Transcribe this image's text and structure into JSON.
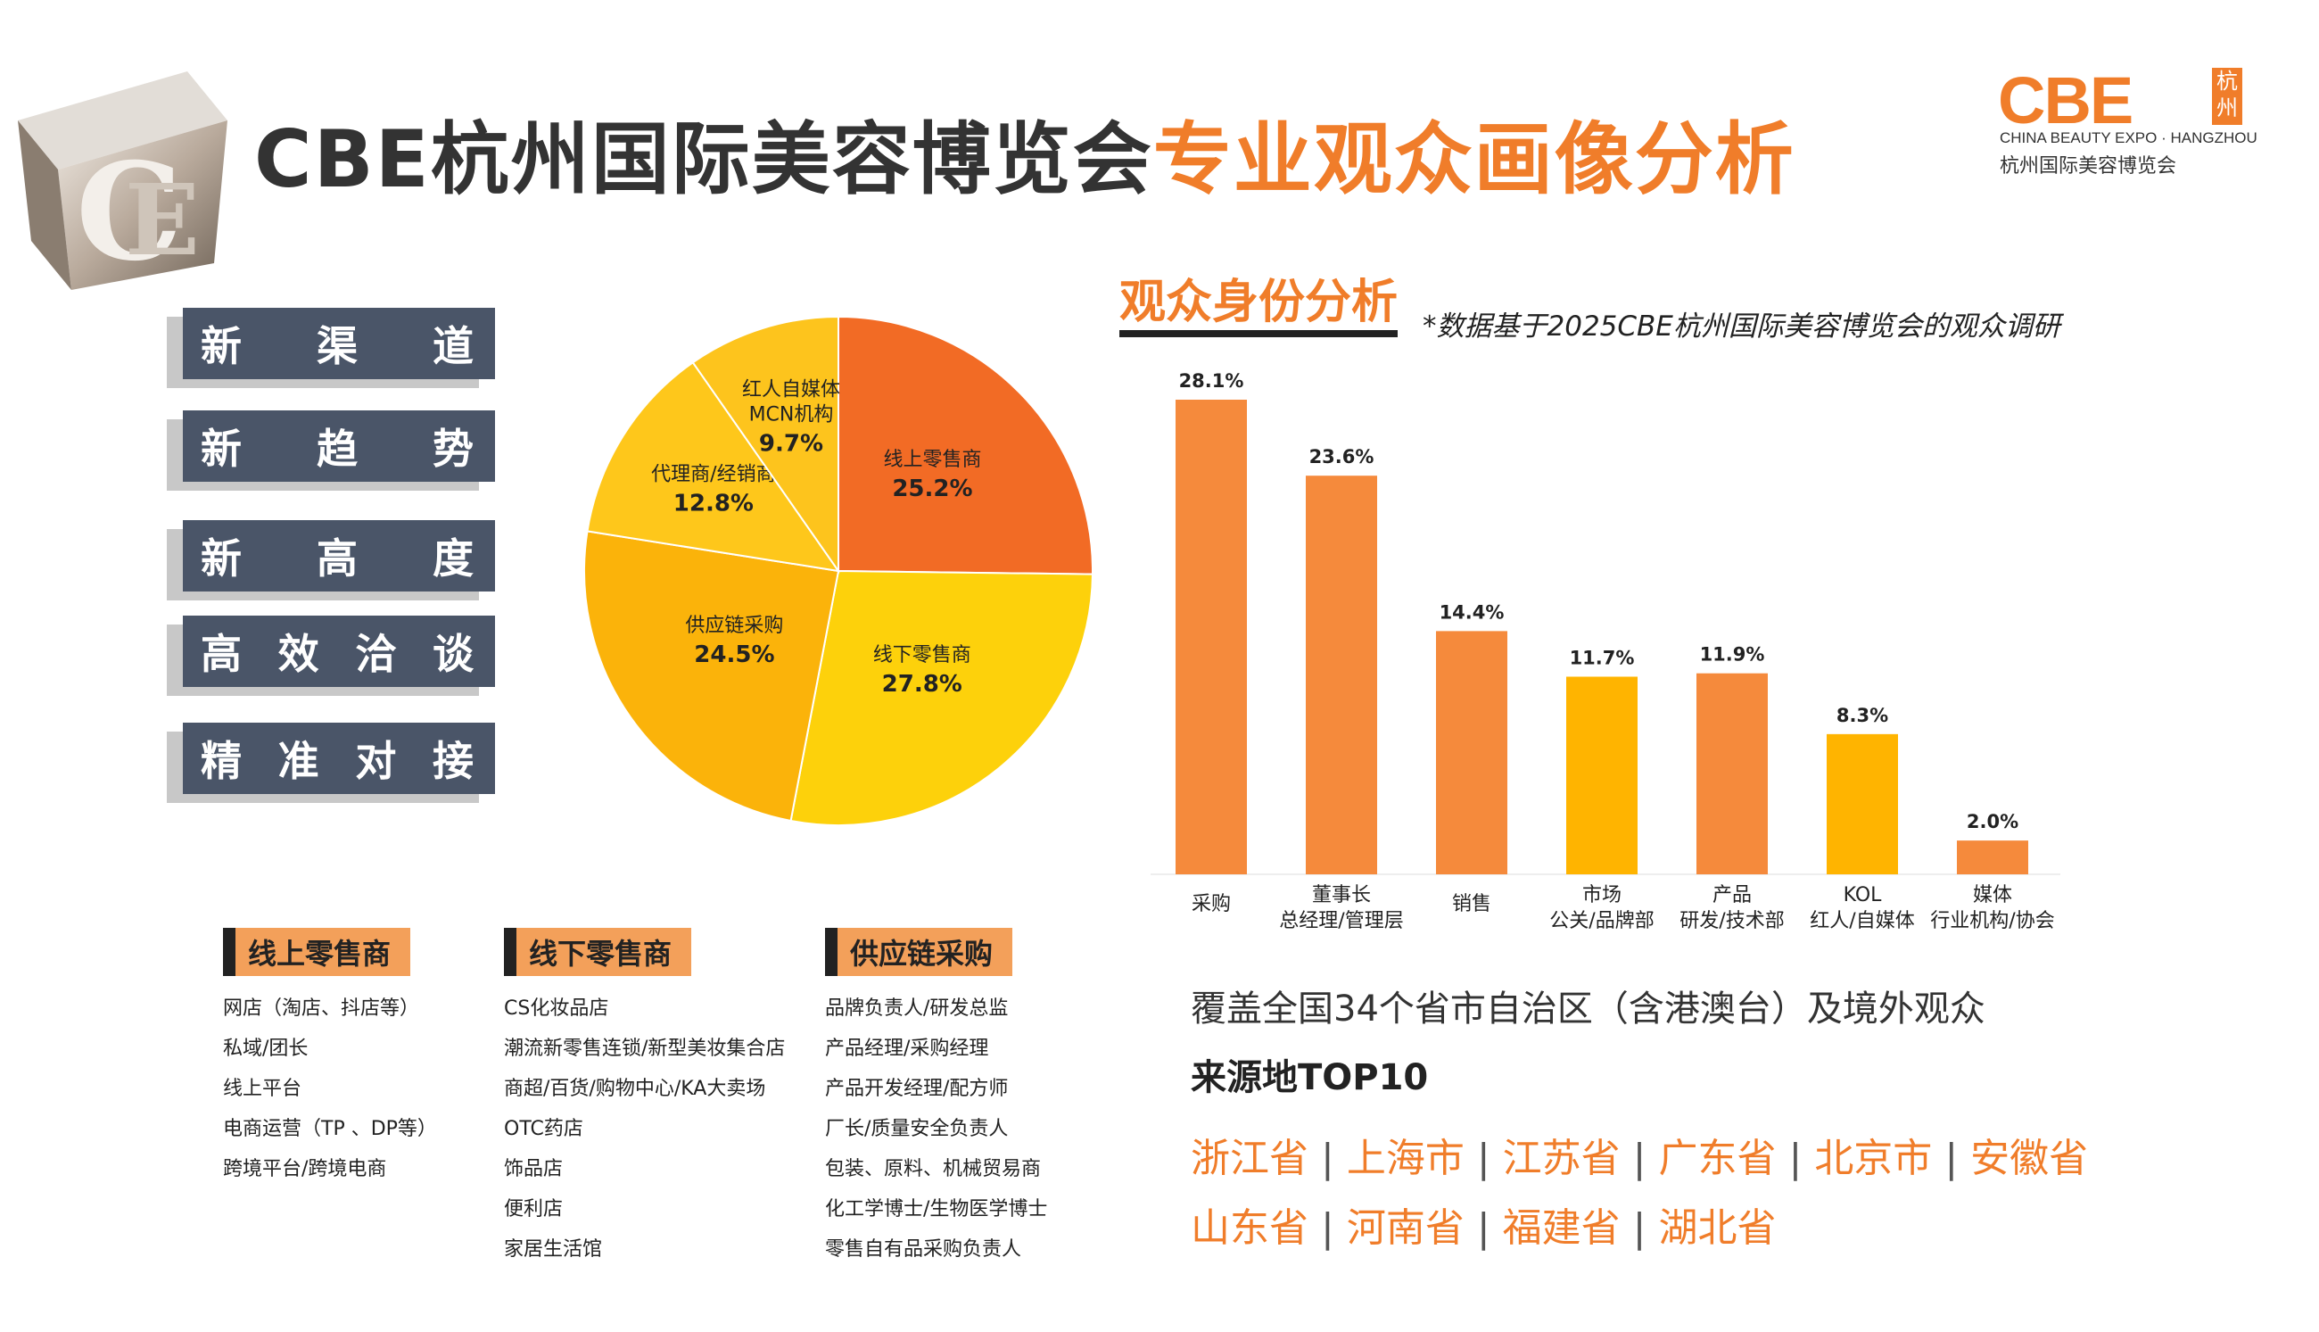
{
  "header": {
    "title_main": "CBE杭州国际美容博览会",
    "title_accent": "专业观众画像分析"
  },
  "logo": {
    "mark": "CBE",
    "hz": "杭州",
    "en": "CHINA BEAUTY EXPO · HANGZHOU",
    "cn": "杭州国际美容博览会"
  },
  "tags": [
    "新渠道",
    "新趋势",
    "新高度",
    "高效洽谈",
    "精准对接"
  ],
  "colors": {
    "accent": "#f07d2a",
    "bar_orange": "#f58a3c",
    "bar_yellow": "#ffb400",
    "tag_bg": "#4a5568",
    "pie": [
      "#f26b25",
      "#fdd10b",
      "#fbb30a",
      "#fec71b",
      "#fdc41d"
    ]
  },
  "chart_data": [
    {
      "type": "pie",
      "slices": [
        {
          "label": "线上零售商",
          "value": 25.2,
          "display": "25.2%"
        },
        {
          "label": "线下零售商",
          "value": 27.8,
          "display": "27.8%"
        },
        {
          "label": "供应链采购",
          "value": 24.5,
          "display": "24.5%"
        },
        {
          "label": "代理商/经销商",
          "value": 12.8,
          "display": "12.8%"
        },
        {
          "label": "红人自媒体\nMCN机构",
          "value": 9.7,
          "display": "9.7%"
        }
      ]
    },
    {
      "type": "bar",
      "title": "观众身份分析",
      "note": "*数据基于2025CBE杭州国际美容博览会的观众调研",
      "ylim": [
        0,
        30
      ],
      "categories": [
        "采购",
        "董事长\n总经理/管理层",
        "销售",
        "市场\n公关/品牌部",
        "产品\n研发/技术部",
        "KOL\n红人/自媒体",
        "媒体\n行业机构/协会"
      ],
      "values": [
        28.1,
        23.6,
        14.4,
        11.7,
        11.9,
        8.3,
        2.0
      ],
      "value_labels": [
        "28.1%",
        "23.6%",
        "14.4%",
        "11.7%",
        "11.9%",
        "8.3%",
        "2.0%"
      ],
      "bar_colors": [
        "#f58a3c",
        "#f58a3c",
        "#f58a3c",
        "#ffb400",
        "#f58a3c",
        "#ffb400",
        "#f58a3c"
      ]
    }
  ],
  "coverage": "覆盖全国34个省市自治区（含港澳台）及境外观众",
  "top10_title": "来源地TOP10",
  "provinces_line1": [
    "浙江省",
    "上海市",
    "江苏省",
    "广东省",
    "北京市",
    "安徽省"
  ],
  "provinces_line2": [
    "山东省",
    "河南省",
    "福建省",
    "湖北省"
  ],
  "categories": [
    {
      "title": "线上零售商",
      "items": [
        "网店（淘店、抖店等）",
        "私域/团长",
        "线上平台",
        "电商运营（TP 、DP等）",
        "跨境平台/跨境电商"
      ]
    },
    {
      "title": "线下零售商",
      "items": [
        "CS化妆品店",
        "潮流新零售连锁/新型美妆集合店",
        "商超/百货/购物中心/KA大卖场",
        "OTC药店",
        "饰品店",
        "便利店",
        "家居生活馆"
      ]
    },
    {
      "title": "供应链采购",
      "items": [
        "品牌负责人/研发总监",
        "产品经理/采购经理",
        "产品开发经理/配方师",
        "厂长/质量安全负责人",
        "包装、原料、机械贸易商",
        "化工学博士/生物医学博士",
        "零售自有品采购负责人"
      ]
    }
  ]
}
